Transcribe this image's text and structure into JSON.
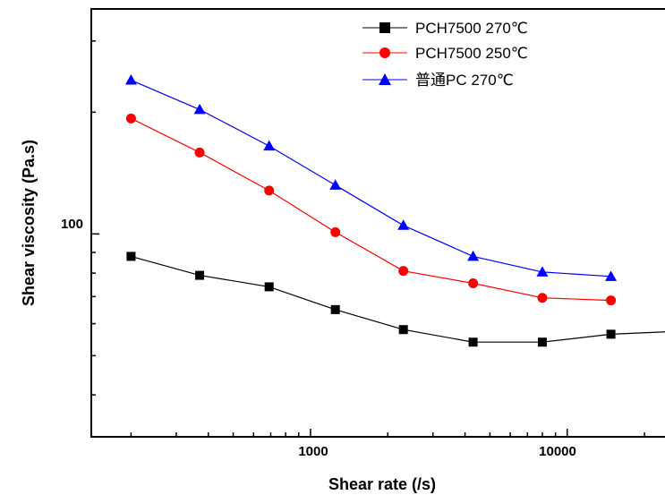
{
  "chart_data": {
    "type": "line",
    "xlabel": "Shear rate (/s)",
    "ylabel": "Shear viscosity (Pa.s)",
    "x_scale": "log",
    "y_scale": "log",
    "x_tick_labels": [
      "1000",
      "10000"
    ],
    "y_tick_labels": [
      "100"
    ],
    "xlim": [
      140,
      28000
    ],
    "ylim": [
      31.5,
      360
    ],
    "legend_position": "top-right",
    "series": [
      {
        "name": "PCH7500 270℃",
        "color": "#000000",
        "marker": "square",
        "x": [
          200,
          370,
          690,
          1250,
          2300,
          4300,
          8000,
          14800,
          28000
        ],
        "y": [
          88,
          79,
          74,
          65,
          58,
          54,
          54,
          56.5,
          57.5
        ]
      },
      {
        "name": "PCH7500 250℃",
        "color": "#ff0000",
        "marker": "circle",
        "x": [
          200,
          370,
          690,
          1250,
          2300,
          4300,
          8000,
          14800
        ],
        "y": [
          193,
          159,
          128,
          101,
          81,
          75.5,
          69.5,
          68.5
        ]
      },
      {
        "name": "普通PC 270℃",
        "color": "#0000ff",
        "marker": "triangle",
        "x": [
          200,
          370,
          690,
          1250,
          2300,
          4300,
          8000,
          14800
        ],
        "y": [
          240,
          203,
          165,
          132,
          105,
          88,
          80.5,
          78.5
        ]
      }
    ]
  }
}
